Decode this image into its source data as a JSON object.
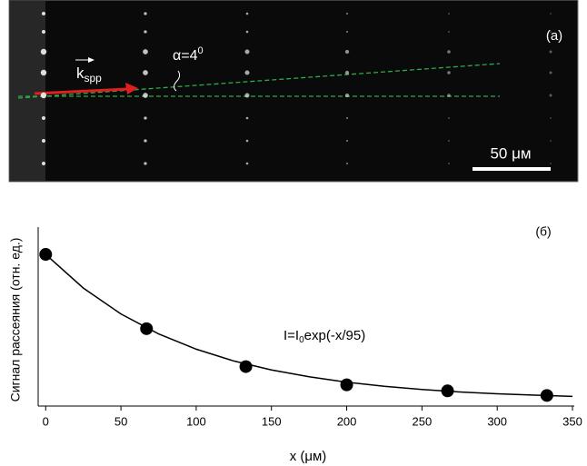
{
  "image_panel": {
    "label": "(a)",
    "angle": "α=4",
    "angle_sup": "0",
    "k": "k",
    "k_sub": "spp",
    "scale_bar": "50 μм"
  },
  "chart_data": {
    "type": "scatter",
    "panel_label": "(б)",
    "annotation": "I=I",
    "annotation_sub": "0",
    "annotation_rest": "exp(-x/95)",
    "xlabel": "x (μм)",
    "ylabel": "Сигнал рассеяния (отн. ед.)",
    "x": [
      0,
      67,
      133,
      200,
      267,
      333
    ],
    "values": [
      1.0,
      0.51,
      0.26,
      0.14,
      0.1,
      0.07
    ],
    "color": "#000000",
    "fit": {
      "x": [
        0,
        25,
        50,
        75,
        100,
        125,
        150,
        175,
        200,
        225,
        250,
        275,
        300,
        325,
        350
      ],
      "values": [
        1.0,
        0.778,
        0.607,
        0.476,
        0.375,
        0.297,
        0.238,
        0.193,
        0.157,
        0.13,
        0.109,
        0.093,
        0.081,
        0.072,
        0.064
      ]
    },
    "xlim": [
      -5,
      350
    ],
    "ylim": [
      0,
      1.15
    ],
    "xticks": [
      0,
      50,
      100,
      150,
      200,
      250,
      300,
      350
    ]
  }
}
